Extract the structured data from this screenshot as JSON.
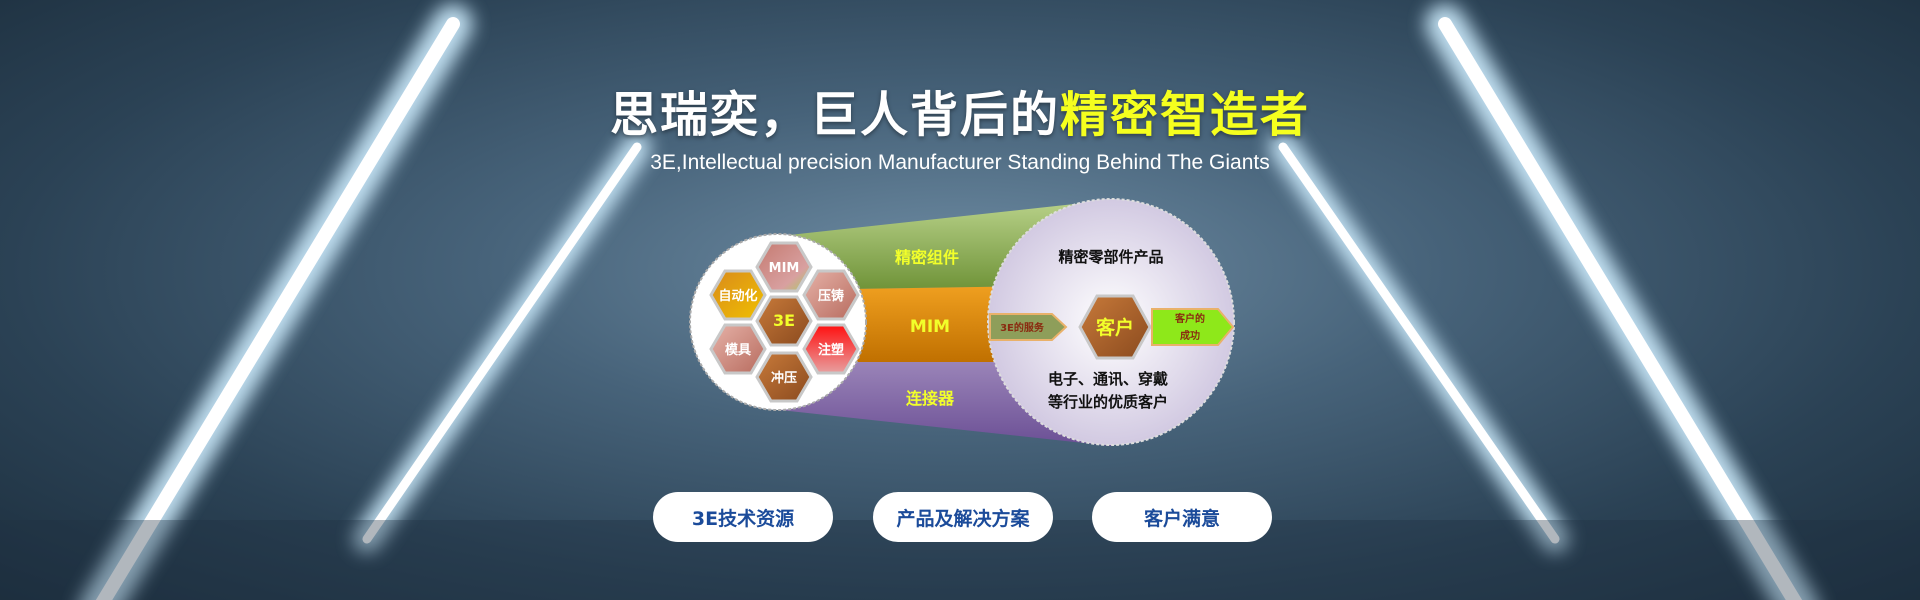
{
  "hero": {
    "title_white": "思瑞奕，巨人背后的",
    "title_highlight": "精密智造者",
    "subtitle": "3E,Intellectual precision Manufacturer Standing Behind The Giants",
    "highlight_color": "#f5ff1e"
  },
  "diagram": {
    "hexagons": {
      "mim": "MIM",
      "automation": "自动化",
      "die_casting": "压铸",
      "center": "3E",
      "mold": "模具",
      "injection": "注塑",
      "stamping": "冲压"
    },
    "bands": {
      "top": "精密组件",
      "middle": "MIM",
      "bottom": "连接器"
    },
    "right": {
      "heading": "精密零部件产品",
      "service": "3E的服务",
      "customer": "客户",
      "success_line1": "客户的",
      "success_line2": "成功",
      "line1": "电子、通讯、穿戴",
      "line2": "等行业的优质客户"
    }
  },
  "buttons": [
    {
      "label": "3E技术资源"
    },
    {
      "label": "产品及解决方案"
    },
    {
      "label": "客户满意"
    }
  ]
}
